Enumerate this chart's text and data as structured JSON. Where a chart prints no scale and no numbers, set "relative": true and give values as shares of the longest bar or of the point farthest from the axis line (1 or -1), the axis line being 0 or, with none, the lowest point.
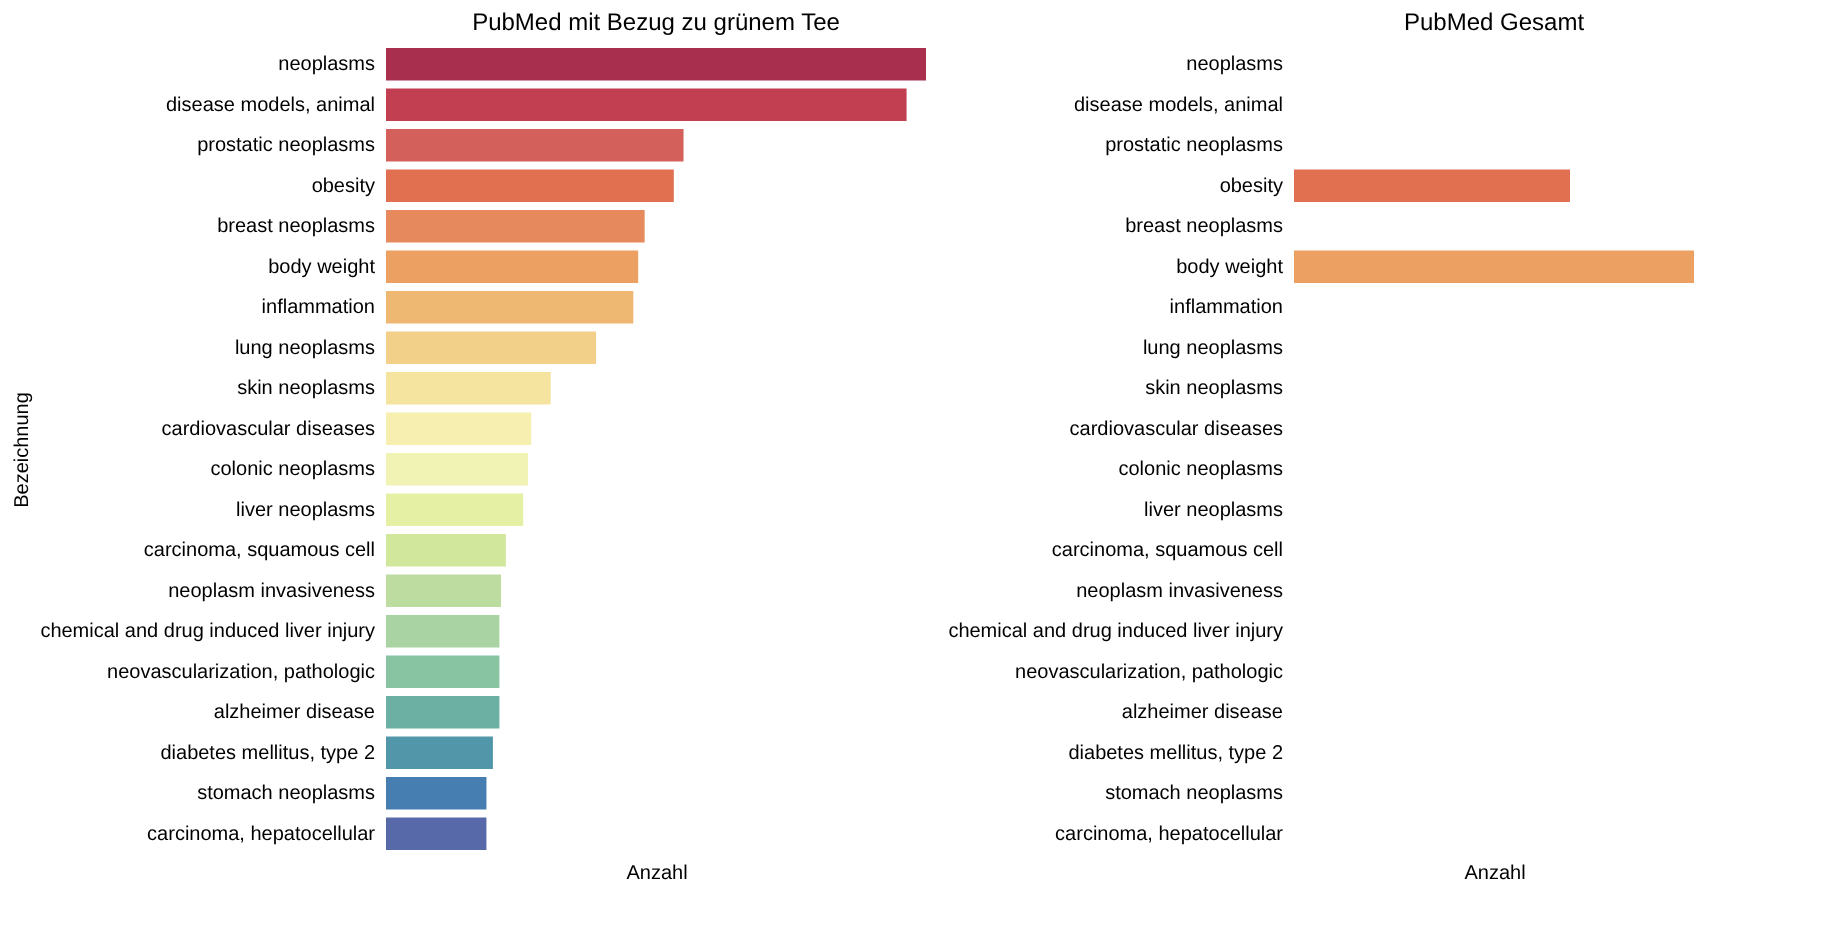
{
  "chart_data": [
    {
      "type": "bar",
      "orientation": "horizontal",
      "relative": true,
      "title": "PubMed mit Bezug zu grünem Tee",
      "xlabel": "Anzahl",
      "ylabel": "Bezeichnung",
      "tick_labels": "y",
      "categories": [
        "neoplasms",
        "disease models, animal",
        "prostatic neoplasms",
        "obesity",
        "breast neoplasms",
        "body weight",
        "inflammation",
        "lung neoplasms",
        "skin neoplasms",
        "cardiovascular diseases",
        "colonic neoplasms",
        "liver neoplasms",
        "carcinoma, squamous cell",
        "neoplasm invasiveness",
        "chemical and drug induced liver injury",
        "neovascularization, pathologic",
        "alzheimer disease",
        "diabetes mellitus, type 2",
        "stomach neoplasms",
        "carcinoma, hepatocellular"
      ],
      "values": [
        1,
        0.964,
        0.551,
        0.533,
        0.479,
        0.467,
        0.458,
        0.389,
        0.305,
        0.269,
        0.263,
        0.254,
        0.222,
        0.213,
        0.21,
        0.21,
        0.21,
        0.198,
        0.186,
        0.186
      ],
      "colors": [
        "#a8304e",
        "#c13f50",
        "#d3605a",
        "#e07050",
        "#e68a5e",
        "#eca062",
        "#efb872",
        "#f2d089",
        "#f5e3a0",
        "#f6efb0",
        "#f1f3b5",
        "#e5f0a4",
        "#d1e89c",
        "#bddca0",
        "#a9d3a3",
        "#88c4a2",
        "#6cb0a3",
        "#5297a9",
        "#477eb2",
        "#5769a8"
      ]
    },
    {
      "type": "bar",
      "orientation": "horizontal",
      "relative": true,
      "title": "PubMed Gesamt",
      "xlabel": "Anzahl",
      "tick_labels": "y",
      "categories": [
        "neoplasms",
        "disease models, animal",
        "prostatic neoplasms",
        "obesity",
        "breast neoplasms",
        "body weight",
        "inflammation",
        "lung neoplasms",
        "skin neoplasms",
        "cardiovascular diseases",
        "colonic neoplasms",
        "liver neoplasms",
        "carcinoma, squamous cell",
        "neoplasm invasiveness",
        "chemical and drug induced liver injury",
        "neovascularization, pathologic",
        "alzheimer disease",
        "diabetes mellitus, type 2",
        "stomach neoplasms",
        "carcinoma, hepatocellular"
      ],
      "values": [
        null,
        null,
        null,
        0.69,
        null,
        1,
        null,
        null,
        null,
        null,
        null,
        null,
        null,
        null,
        null,
        null,
        null,
        null,
        null,
        null
      ],
      "colors": [
        "#a8304e",
        "#c13f50",
        "#d3605a",
        "#e07050",
        "#e68a5e",
        "#eca062",
        "#efb872",
        "#f2d089",
        "#f5e3a0",
        "#f6efb0",
        "#f1f3b5",
        "#e5f0a4",
        "#d1e89c",
        "#bddca0",
        "#a9d3a3",
        "#88c4a2",
        "#6cb0a3",
        "#5297a9",
        "#477eb2",
        "#5769a8"
      ]
    }
  ]
}
